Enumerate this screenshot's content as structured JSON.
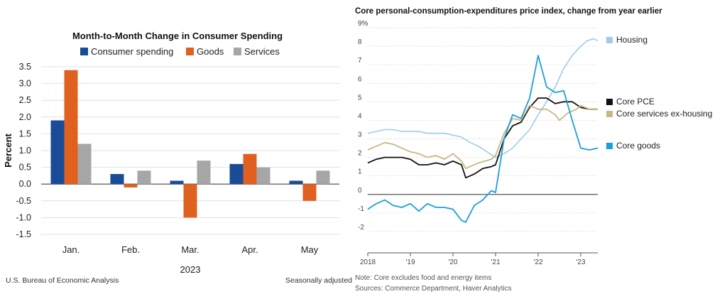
{
  "chart_data": [
    {
      "type": "bar",
      "title": "Month-to-Month Change in Consumer Spending",
      "ylabel": "Percent",
      "xlabel": "2023",
      "categories": [
        "Jan.",
        "Feb.",
        "Mar.",
        "Apr.",
        "May"
      ],
      "ylim": [
        -1.5,
        3.5
      ],
      "yticks": [
        "3.5",
        "3.0",
        "2.5",
        "2.0",
        "1.5",
        "1.0",
        "0.5",
        "0.0",
        "-0.5",
        "-1.0",
        "-1.5"
      ],
      "grid": true,
      "legend_position": "top",
      "series": [
        {
          "name": "Consumer spending",
          "color": "#1a4b96",
          "values": [
            1.9,
            0.3,
            0.1,
            0.6,
            0.1
          ]
        },
        {
          "name": "Goods",
          "color": "#e06020",
          "values": [
            3.4,
            -0.1,
            -1.0,
            0.9,
            -0.5
          ]
        },
        {
          "name": "Services",
          "color": "#a6a6a6",
          "values": [
            1.2,
            0.4,
            0.7,
            0.5,
            0.4
          ]
        }
      ],
      "source": "U.S. Bureau of Economic Analysis",
      "note": "Seasonally adjusted"
    },
    {
      "type": "line",
      "title": "Core personal-consumption-expenditures price index, change from year earlier",
      "ylim": [
        -3,
        9
      ],
      "yticks": [
        "9%",
        "8",
        "7",
        "6",
        "5",
        "4",
        "3",
        "2",
        "1",
        "0",
        "-1",
        "-2"
      ],
      "x_range": [
        2018.0,
        2023.4
      ],
      "xticks": [
        {
          "x": 2018,
          "label": "2018"
        },
        {
          "x": 2019,
          "label": "'19"
        },
        {
          "x": 2020,
          "label": "'20"
        },
        {
          "x": 2021,
          "label": "'21"
        },
        {
          "x": 2022,
          "label": "'22"
        },
        {
          "x": 2023,
          "label": "'23"
        }
      ],
      "grid": true,
      "legend_position": "right",
      "series": [
        {
          "name": "Housing",
          "color": "#9fcbe9",
          "width": 1.6,
          "points": [
            [
              2018.0,
              3.3
            ],
            [
              2018.2,
              3.4
            ],
            [
              2018.4,
              3.5
            ],
            [
              2018.6,
              3.5
            ],
            [
              2018.8,
              3.4
            ],
            [
              2019.0,
              3.4
            ],
            [
              2019.2,
              3.4
            ],
            [
              2019.4,
              3.3
            ],
            [
              2019.6,
              3.3
            ],
            [
              2019.8,
              3.3
            ],
            [
              2020.0,
              3.2
            ],
            [
              2020.2,
              3.1
            ],
            [
              2020.4,
              2.8
            ],
            [
              2020.6,
              2.6
            ],
            [
              2020.8,
              2.3
            ],
            [
              2021.0,
              2.0
            ],
            [
              2021.2,
              2.2
            ],
            [
              2021.4,
              2.5
            ],
            [
              2021.6,
              3.0
            ],
            [
              2021.8,
              3.5
            ],
            [
              2022.0,
              4.3
            ],
            [
              2022.2,
              5.0
            ],
            [
              2022.4,
              5.8
            ],
            [
              2022.6,
              6.8
            ],
            [
              2022.8,
              7.5
            ],
            [
              2023.0,
              8.0
            ],
            [
              2023.15,
              8.3
            ],
            [
              2023.3,
              8.4
            ],
            [
              2023.4,
              8.3
            ]
          ]
        },
        {
          "name": "Core PCE",
          "color": "#111111",
          "width": 1.8,
          "points": [
            [
              2018.0,
              1.7
            ],
            [
              2018.2,
              1.9
            ],
            [
              2018.4,
              2.0
            ],
            [
              2018.6,
              2.0
            ],
            [
              2018.8,
              2.0
            ],
            [
              2019.0,
              1.9
            ],
            [
              2019.2,
              1.6
            ],
            [
              2019.4,
              1.6
            ],
            [
              2019.6,
              1.7
            ],
            [
              2019.8,
              1.6
            ],
            [
              2020.0,
              1.8
            ],
            [
              2020.2,
              1.6
            ],
            [
              2020.3,
              0.9
            ],
            [
              2020.5,
              1.1
            ],
            [
              2020.7,
              1.4
            ],
            [
              2020.9,
              1.5
            ],
            [
              2021.0,
              1.6
            ],
            [
              2021.2,
              3.0
            ],
            [
              2021.4,
              3.7
            ],
            [
              2021.6,
              3.9
            ],
            [
              2021.8,
              4.7
            ],
            [
              2022.0,
              5.2
            ],
            [
              2022.2,
              5.2
            ],
            [
              2022.4,
              4.9
            ],
            [
              2022.6,
              5.0
            ],
            [
              2022.8,
              5.0
            ],
            [
              2023.0,
              4.7
            ],
            [
              2023.2,
              4.6
            ],
            [
              2023.4,
              4.6
            ]
          ]
        },
        {
          "name": "Core services ex-housing",
          "color": "#c7b883",
          "width": 1.8,
          "points": [
            [
              2018.0,
              2.4
            ],
            [
              2018.2,
              2.6
            ],
            [
              2018.4,
              2.8
            ],
            [
              2018.6,
              2.7
            ],
            [
              2018.8,
              2.5
            ],
            [
              2019.0,
              2.3
            ],
            [
              2019.2,
              2.2
            ],
            [
              2019.4,
              2.0
            ],
            [
              2019.6,
              2.1
            ],
            [
              2019.8,
              1.9
            ],
            [
              2020.0,
              2.2
            ],
            [
              2020.2,
              1.8
            ],
            [
              2020.3,
              1.4
            ],
            [
              2020.6,
              1.7
            ],
            [
              2020.9,
              1.9
            ],
            [
              2021.0,
              2.1
            ],
            [
              2021.2,
              3.3
            ],
            [
              2021.4,
              4.1
            ],
            [
              2021.6,
              4.0
            ],
            [
              2021.8,
              4.8
            ],
            [
              2022.0,
              4.6
            ],
            [
              2022.2,
              4.6
            ],
            [
              2022.4,
              4.3
            ],
            [
              2022.5,
              4.0
            ],
            [
              2022.7,
              4.4
            ],
            [
              2022.9,
              4.6
            ],
            [
              2023.0,
              4.8
            ],
            [
              2023.2,
              4.6
            ],
            [
              2023.4,
              4.6
            ]
          ]
        },
        {
          "name": "Core goods",
          "color": "#1aa0d8",
          "width": 1.8,
          "points": [
            [
              2018.0,
              -0.8
            ],
            [
              2018.2,
              -0.5
            ],
            [
              2018.4,
              -0.3
            ],
            [
              2018.6,
              -0.6
            ],
            [
              2018.8,
              -0.7
            ],
            [
              2019.0,
              -0.5
            ],
            [
              2019.2,
              -0.9
            ],
            [
              2019.4,
              -0.5
            ],
            [
              2019.6,
              -0.7
            ],
            [
              2019.8,
              -0.7
            ],
            [
              2020.0,
              -0.8
            ],
            [
              2020.2,
              -1.4
            ],
            [
              2020.3,
              -1.5
            ],
            [
              2020.5,
              -0.6
            ],
            [
              2020.7,
              -0.3
            ],
            [
              2020.9,
              0.2
            ],
            [
              2021.0,
              0.1
            ],
            [
              2021.2,
              3.0
            ],
            [
              2021.4,
              4.3
            ],
            [
              2021.6,
              4.1
            ],
            [
              2021.8,
              5.2
            ],
            [
              2022.0,
              7.5
            ],
            [
              2022.2,
              5.8
            ],
            [
              2022.4,
              5.5
            ],
            [
              2022.6,
              5.6
            ],
            [
              2022.8,
              4.0
            ],
            [
              2023.0,
              2.5
            ],
            [
              2023.2,
              2.4
            ],
            [
              2023.4,
              2.5
            ]
          ]
        }
      ],
      "notes": [
        "Note: Core excludes food and energy items",
        "Sources: Commerce Department, Haver Analytics"
      ]
    }
  ]
}
